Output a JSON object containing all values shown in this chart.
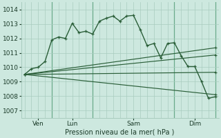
{
  "xlabel": "Pression niveau de la mer( hPa )",
  "ylim": [
    1006.5,
    1014.5
  ],
  "yticks": [
    1007,
    1008,
    1009,
    1010,
    1011,
    1012,
    1013,
    1014
  ],
  "background_color": "#cde8df",
  "grid_color": "#a8ccbf",
  "line_color": "#2a5e38",
  "vline_color": "#6aaa8a",
  "series": [
    {
      "x": [
        0,
        1,
        2,
        3,
        4,
        5,
        6,
        7,
        8,
        9,
        10,
        11,
        12,
        13,
        14,
        15,
        16,
        17,
        18,
        19,
        20,
        21,
        22,
        23,
        24,
        25,
        26,
        27,
        28
      ],
      "y": [
        1009.5,
        1009.9,
        1010.0,
        1010.4,
        1011.9,
        1012.1,
        1012.0,
        1013.05,
        1012.4,
        1012.5,
        1012.3,
        1013.2,
        1013.4,
        1013.55,
        1013.2,
        1013.55,
        1013.6,
        1012.6,
        1011.5,
        1011.65,
        1010.65,
        1011.65,
        1011.7,
        1010.8,
        1010.05,
        1010.05,
        1009.0,
        1007.85,
        1007.95
      ]
    },
    {
      "x": [
        0,
        28
      ],
      "y": [
        1009.5,
        1011.35
      ]
    },
    {
      "x": [
        0,
        28
      ],
      "y": [
        1009.5,
        1010.85
      ]
    },
    {
      "x": [
        0,
        28
      ],
      "y": [
        1009.5,
        1009.65
      ]
    },
    {
      "x": [
        0,
        28
      ],
      "y": [
        1009.5,
        1008.1
      ]
    }
  ],
  "vlines_x": [
    4,
    10,
    22,
    28
  ],
  "xtick_positions": [
    2,
    7,
    16,
    25
  ],
  "xtick_labels": [
    "Ven",
    "Lun",
    "Sam",
    "Dim"
  ],
  "figsize": [
    3.2,
    2.0
  ],
  "dpi": 100
}
